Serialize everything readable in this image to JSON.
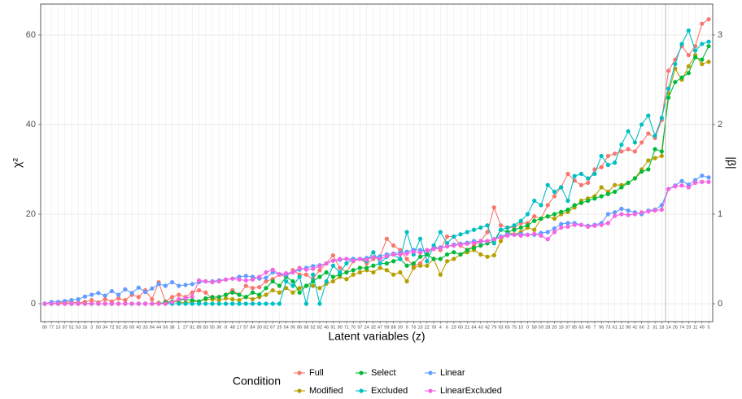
{
  "chart_data": {
    "type": "line",
    "x_label": "Latent variables (z)",
    "y_label": "χ²",
    "y2_label": "|β|",
    "legend_title": "Condition",
    "categories": [
      "80",
      "77",
      "13",
      "87",
      "51",
      "53",
      "16",
      "3",
      "50",
      "34",
      "72",
      "92",
      "35",
      "69",
      "40",
      "33",
      "94",
      "44",
      "56",
      "38",
      "1",
      "27",
      "81",
      "89",
      "83",
      "55",
      "36",
      "8",
      "48",
      "17",
      "57",
      "84",
      "30",
      "62",
      "67",
      "25",
      "54",
      "95",
      "86",
      "68",
      "52",
      "82",
      "46",
      "91",
      "90",
      "71",
      "70",
      "97",
      "24",
      "32",
      "47",
      "99",
      "88",
      "39",
      "9",
      "76",
      "15",
      "22",
      "78",
      "4",
      "6",
      "23",
      "60",
      "21",
      "64",
      "43",
      "42",
      "79",
      "93",
      "65",
      "75",
      "10",
      "0",
      "58",
      "59",
      "28",
      "20",
      "19",
      "37",
      "85",
      "63",
      "45",
      "7",
      "96",
      "73",
      "61",
      "12",
      "98",
      "41",
      "66",
      "2",
      "31",
      "18",
      "14",
      "26",
      "74",
      "29",
      "11",
      "49",
      "5"
    ],
    "ylim": [
      -4,
      66.9
    ],
    "yticks": [
      0,
      20,
      40,
      60
    ],
    "y2lim": [
      -0.2,
      3.345
    ],
    "y2ticks": [
      0,
      1,
      2,
      3
    ],
    "grid": true,
    "series": [
      {
        "name": "Full",
        "color": "#F8766D",
        "values": [
          0,
          0,
          0.2,
          0.5,
          0.3,
          0.2,
          0.4,
          0.8,
          0.3,
          1,
          0.5,
          1.2,
          0.8,
          2,
          1.5,
          3,
          1,
          4.8,
          0.5,
          1.5,
          2,
          1.5,
          2.5,
          3,
          2.5,
          1,
          1.5,
          2,
          3,
          2,
          4,
          3.5,
          3.7,
          5,
          5.5,
          6.5,
          6,
          7.5,
          6.5,
          6.5,
          5.5,
          7.5,
          9,
          10.8,
          8,
          7,
          9.5,
          10,
          9,
          10,
          10.5,
          14.5,
          13,
          12,
          10,
          8.5,
          9,
          11,
          13,
          12,
          15,
          15,
          13,
          12,
          13,
          14,
          16,
          21.5,
          17.5,
          17,
          17,
          18,
          18,
          19.5,
          19,
          22,
          24,
          26,
          29,
          27.5,
          26.5,
          27,
          30,
          30.5,
          33,
          33.5,
          34,
          34.5,
          34,
          36,
          38,
          37,
          41,
          52,
          54.5,
          57.5,
          55.5,
          57.5,
          62.5,
          63.5
        ]
      },
      {
        "name": "Modified",
        "color": "#B79F00",
        "values": [
          0,
          0,
          0,
          0.2,
          0,
          0,
          0.1,
          0,
          0,
          0,
          0,
          0,
          0,
          0,
          0,
          0,
          0,
          0.2,
          0,
          0.5,
          0.3,
          0.2,
          0.5,
          0.5,
          1,
          1,
          0.8,
          1.2,
          1,
          0.8,
          1.5,
          1,
          1.5,
          2,
          3,
          2.5,
          3.5,
          2.5,
          3.5,
          4,
          4,
          3.5,
          4.5,
          5,
          6,
          5.5,
          6.5,
          7,
          7.5,
          7,
          8,
          7.5,
          6.5,
          7,
          5,
          8,
          8.5,
          8.5,
          10,
          6.5,
          9.5,
          10,
          11,
          11.5,
          12,
          11,
          10.5,
          10.8,
          14,
          16,
          15.5,
          16,
          17,
          16.5,
          19,
          19.5,
          19,
          20,
          20.5,
          21.5,
          23,
          23.5,
          24,
          26,
          25,
          26.5,
          26.5,
          27,
          28,
          30,
          32,
          32.5,
          33,
          47,
          52.5,
          50,
          53,
          55.5,
          53.5,
          54
        ]
      },
      {
        "name": "Select",
        "color": "#00BA38",
        "values": [
          0,
          0,
          0,
          0,
          0,
          0,
          0,
          0,
          0,
          0,
          0,
          0,
          0,
          0,
          0,
          0,
          0,
          0,
          0.3,
          0.5,
          0.8,
          1,
          0.8,
          0.5,
          1.2,
          1.5,
          1.5,
          2,
          2.5,
          2,
          1.5,
          2.5,
          2,
          3.5,
          5,
          4,
          6,
          5,
          2.5,
          4,
          5,
          6,
          7,
          6,
          6.5,
          7,
          7.5,
          8,
          8,
          8.5,
          9,
          9,
          9.5,
          10,
          8.5,
          9,
          10.5,
          11,
          10,
          10,
          11,
          11.5,
          11,
          12,
          12.5,
          13,
          13.5,
          14,
          16.5,
          16,
          16.5,
          17,
          17.5,
          18.5,
          19,
          19.5,
          20,
          20.5,
          21,
          22,
          22.5,
          23,
          23.5,
          24,
          24.5,
          25,
          26,
          27,
          28,
          29.5,
          30,
          34.5,
          34,
          46,
          49.5,
          50.5,
          51.5,
          55,
          54.5,
          57.5
        ]
      },
      {
        "name": "Excluded",
        "color": "#00BFC4",
        "values": [
          0,
          0,
          0,
          0,
          0,
          0,
          0,
          0,
          0,
          0,
          0,
          0,
          0,
          0,
          0,
          0,
          0,
          0,
          0,
          0,
          0,
          0,
          0,
          0,
          0,
          0,
          0,
          0,
          0,
          0,
          0,
          0,
          0,
          0,
          0,
          0,
          5,
          4,
          6,
          0,
          6.5,
          0,
          5,
          8.5,
          7,
          9,
          10,
          10,
          9.5,
          11.5,
          9,
          10.5,
          11,
          10,
          16,
          11,
          14.5,
          9.5,
          13,
          16,
          13.5,
          15,
          15.5,
          16,
          16.5,
          17,
          17.5,
          13.5,
          16.5,
          17,
          17.5,
          18.5,
          20,
          23,
          22,
          26.5,
          25,
          26,
          23,
          28.5,
          29,
          28,
          29,
          33,
          31,
          31.5,
          35.5,
          38.5,
          36,
          40,
          42,
          37.5,
          41.5,
          48,
          53.5,
          58,
          61,
          56.5,
          58,
          58.5
        ]
      },
      {
        "name": "Linear",
        "color": "#619CFF",
        "axis": "y2",
        "values": [
          0,
          0.02,
          0.02,
          0.03,
          0.04,
          0.05,
          0.08,
          0.1,
          0.12,
          0.09,
          0.14,
          0.1,
          0.16,
          0.12,
          0.18,
          0.13,
          0.17,
          0.22,
          0.2,
          0.24,
          0.2,
          0.21,
          0.22,
          0.24,
          0.25,
          0.25,
          0.26,
          0.27,
          0.28,
          0.3,
          0.31,
          0.3,
          0.28,
          0.29,
          0.35,
          0.33,
          0.32,
          0.35,
          0.38,
          0.4,
          0.42,
          0.43,
          0.45,
          0.48,
          0.49,
          0.5,
          0.5,
          0.5,
          0.51,
          0.52,
          0.53,
          0.55,
          0.56,
          0.57,
          0.58,
          0.6,
          0.6,
          0.59,
          0.62,
          0.63,
          0.64,
          0.66,
          0.67,
          0.68,
          0.7,
          0.69,
          0.7,
          0.72,
          0.75,
          0.78,
          0.77,
          0.78,
          0.77,
          0.77,
          0.79,
          0.8,
          0.84,
          0.89,
          0.9,
          0.9,
          0.88,
          0.87,
          0.88,
          0.9,
          1.0,
          1.02,
          1.06,
          1.04,
          1.02,
          1.0,
          1.04,
          1.05,
          1.1,
          1.28,
          1.32,
          1.37,
          1.33,
          1.38,
          1.43,
          1.41
        ]
      },
      {
        "name": "LinearExcluded",
        "color": "#F564E3",
        "axis": "y2",
        "values": [
          0,
          0,
          0,
          0,
          0,
          0,
          0,
          0,
          0,
          0,
          0,
          0,
          0,
          0,
          0,
          0,
          0,
          0,
          0,
          0.02,
          0.05,
          0.06,
          0.08,
          0.26,
          0.25,
          0.24,
          0.25,
          0.27,
          0.28,
          0.27,
          0.26,
          0.27,
          0.3,
          0.35,
          0.38,
          0.33,
          0.34,
          0.35,
          0.4,
          0.38,
          0.39,
          0.42,
          0.45,
          0.48,
          0.5,
          0.5,
          0.48,
          0.5,
          0.49,
          0.52,
          0.5,
          0.53,
          0.55,
          0.55,
          0.56,
          0.58,
          0.57,
          0.6,
          0.61,
          0.62,
          0.64,
          0.65,
          0.66,
          0.67,
          0.68,
          0.7,
          0.7,
          0.72,
          0.74,
          0.76,
          0.77,
          0.76,
          0.77,
          0.78,
          0.76,
          0.72,
          0.8,
          0.85,
          0.86,
          0.88,
          0.88,
          0.86,
          0.87,
          0.88,
          0.9,
          0.98,
          1.0,
          0.99,
          1.0,
          1.02,
          1.03,
          1.04,
          1.05,
          1.28,
          1.31,
          1.32,
          1.3,
          1.35,
          1.36,
          1.36
        ]
      }
    ]
  }
}
